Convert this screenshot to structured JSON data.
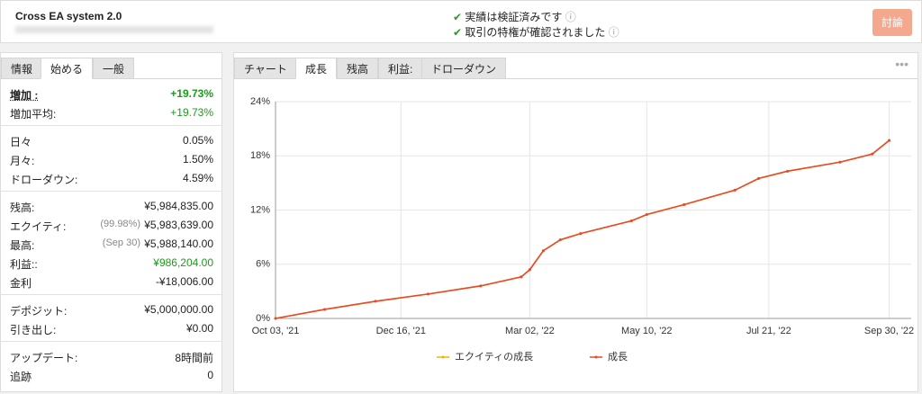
{
  "header": {
    "title": "Cross EA system 2.0",
    "checks": [
      "実績は検証済みです",
      "取引の特権が確認されました"
    ],
    "button": "討論"
  },
  "left_tabs": {
    "tabs": [
      "情報",
      "始める",
      "一般"
    ],
    "active": 1
  },
  "stats": {
    "groups": [
      [
        {
          "label": "増加 :",
          "value": "+19.73%",
          "green": true,
          "bold": true
        },
        {
          "label": "増加平均:",
          "value": "+19.73%",
          "green": true
        }
      ],
      [
        {
          "label": "日々",
          "value": "0.05%"
        },
        {
          "label": "月々:",
          "value": "1.50%"
        },
        {
          "label": "ドローダウン:",
          "value": "4.59%"
        }
      ],
      [
        {
          "label": "残高:",
          "value": "¥5,984,835.00"
        },
        {
          "label": "エクイティ:",
          "note": "(99.98%)",
          "value": "¥5,983,639.00"
        },
        {
          "label": "最高:",
          "note": "(Sep 30)",
          "value": "¥5,988,140.00"
        },
        {
          "label": "利益::",
          "value": "¥986,204.00",
          "green": true
        },
        {
          "label": "金利",
          "value": "-¥18,006.00"
        }
      ],
      [
        {
          "label": "デポジット:",
          "value": "¥5,000,000.00"
        },
        {
          "label": "引き出し:",
          "value": "¥0.00"
        }
      ],
      [
        {
          "label": "アップデート:",
          "value": "8時間前"
        },
        {
          "label": "追跡",
          "value": "0"
        }
      ]
    ]
  },
  "right_tabs": {
    "tabs": [
      "チャート",
      "成長",
      "残高",
      "利益:",
      "ドローダウン"
    ],
    "active": 1
  },
  "chart_data": {
    "type": "line",
    "x": [
      "2021-10-03",
      "2021-11-01",
      "2021-12-01",
      "2022-01-01",
      "2022-02-01",
      "2022-02-25",
      "2022-03-02",
      "2022-03-10",
      "2022-03-20",
      "2022-04-01",
      "2022-05-01",
      "2022-05-10",
      "2022-06-01",
      "2022-07-01",
      "2022-07-15",
      "2022-08-01",
      "2022-09-01",
      "2022-09-20",
      "2022-09-30"
    ],
    "series": [
      {
        "name": "エクイティの成長",
        "color": "#f0b400",
        "values": [
          0,
          1.0,
          1.9,
          2.7,
          3.6,
          4.6,
          5.4,
          7.5,
          8.7,
          9.4,
          10.8,
          11.5,
          12.6,
          14.2,
          15.5,
          16.3,
          17.3,
          18.2,
          19.7
        ]
      },
      {
        "name": "成長",
        "color": "#e8492c",
        "values": [
          0,
          1.0,
          1.9,
          2.7,
          3.6,
          4.6,
          5.4,
          7.5,
          8.7,
          9.4,
          10.8,
          11.5,
          12.6,
          14.2,
          15.5,
          16.3,
          17.3,
          18.2,
          19.7
        ]
      }
    ],
    "xlim": [
      "2021-10-03",
      "2022-10-13"
    ],
    "xticks": [
      {
        "value": "2021-10-03",
        "label": "Oct 03, '21"
      },
      {
        "value": "2021-12-16",
        "label": "Dec 16, '21"
      },
      {
        "value": "2022-03-02",
        "label": "Mar 02, '22"
      },
      {
        "value": "2022-05-10",
        "label": "May 10, '22"
      },
      {
        "value": "2022-07-21",
        "label": "Jul 21, '22"
      },
      {
        "value": "2022-09-30",
        "label": "Sep 30, '22"
      }
    ],
    "ylim": [
      0,
      24
    ],
    "yticks": [
      {
        "value": 0,
        "label": "0%"
      },
      {
        "value": 6,
        "label": "6%"
      },
      {
        "value": 12,
        "label": "12%"
      },
      {
        "value": 18,
        "label": "18%"
      },
      {
        "value": 24,
        "label": "24%"
      }
    ],
    "grid": true
  }
}
